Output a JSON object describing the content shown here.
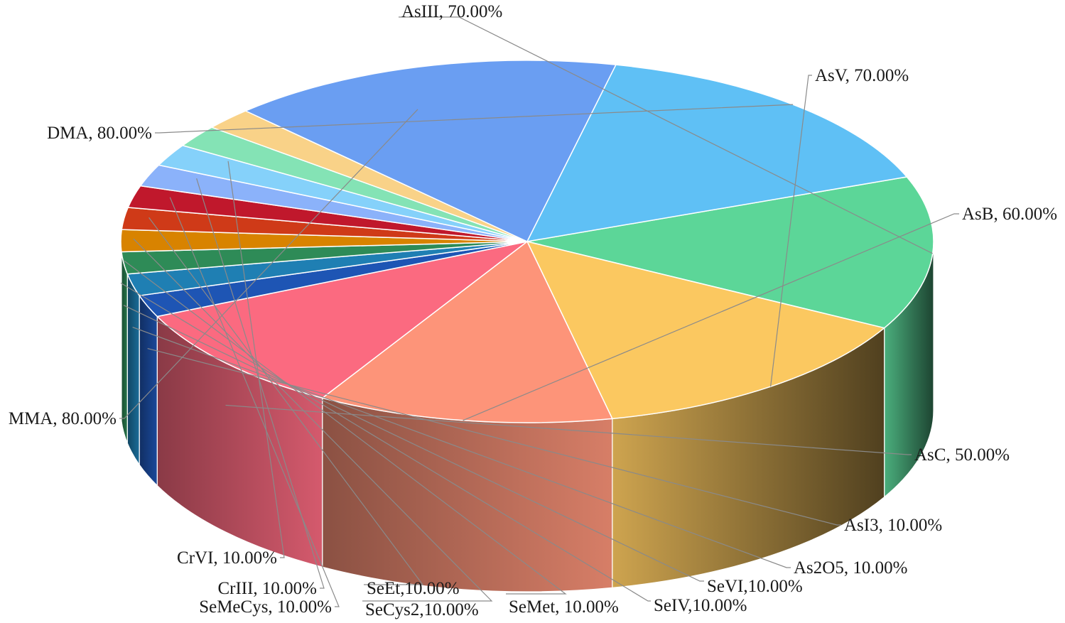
{
  "chart_data": {
    "type": "pie",
    "title": "",
    "style": "3d",
    "slices": [
      {
        "label": "AsIII",
        "display": "AsIII, 70.00%",
        "value": 70.0,
        "color": "#5cd698"
      },
      {
        "label": "AsV",
        "display": "AsV, 70.00%",
        "value": 70.0,
        "color": "#fbc860"
      },
      {
        "label": "AsB",
        "display": "AsB, 60.00%",
        "value": 60.0,
        "color": "#fd9479"
      },
      {
        "label": "AsC",
        "display": "AsC, 50.00%",
        "value": 50.0,
        "color": "#fb6a80"
      },
      {
        "label": "AsI3",
        "display": "AsI3, 10.00%",
        "value": 10.0,
        "color": "#1e55b4"
      },
      {
        "label": "As2O5",
        "display": "As2O5, 10.00%",
        "value": 10.0,
        "color": "#1f7fb3"
      },
      {
        "label": "SeVI",
        "display": "SeVI,10.00%",
        "value": 10.0,
        "color": "#2e8b57"
      },
      {
        "label": "SeIV",
        "display": "SeIV,10.00%",
        "value": 10.0,
        "color": "#d88300"
      },
      {
        "label": "SeMet",
        "display": "SeMet, 10.00%",
        "value": 10.0,
        "color": "#cf3a18"
      },
      {
        "label": "SeCys2",
        "display": "SeCys2,10.00%",
        "value": 10.0,
        "color": "#c0182c"
      },
      {
        "label": "SeEt",
        "display": "SeEt,10.00%",
        "value": 10.0,
        "color": "#8bb2fa"
      },
      {
        "label": "SeMeCys",
        "display": "SeMeCys, 10.00%",
        "value": 10.0,
        "color": "#85d1fa"
      },
      {
        "label": "CrIII",
        "display": "CrIII, 10.00%",
        "value": 10.0,
        "color": "#84e3b5"
      },
      {
        "label": "CrVI",
        "display": "CrVI, 10.00%",
        "value": 10.0,
        "color": "#f9d288"
      },
      {
        "label": "MMA",
        "display": "MMA, 80.00%",
        "value": 80.0,
        "color": "#6a9ef2"
      },
      {
        "label": "DMA",
        "display": "DMA, 80.00%",
        "value": 80.0,
        "color": "#5fc0f5"
      }
    ]
  }
}
